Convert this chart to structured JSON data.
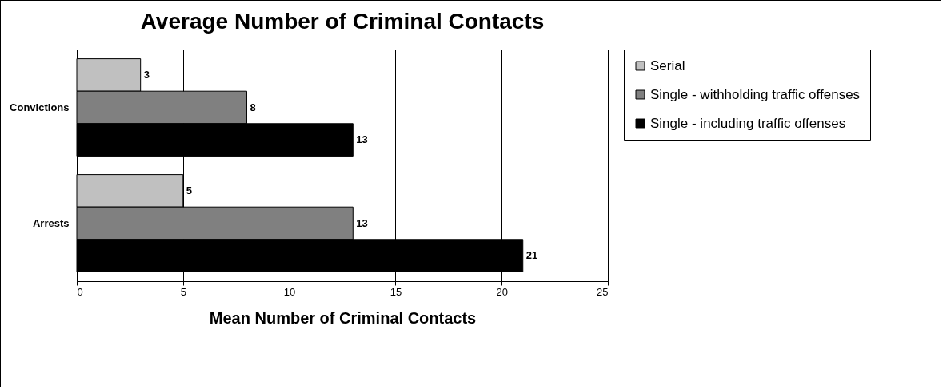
{
  "chart_data": {
    "type": "bar",
    "orientation": "horizontal",
    "title": "Average Number of Criminal Contacts",
    "xlabel": "Mean Number of Criminal Contacts",
    "categories": [
      "Convictions",
      "Arrests"
    ],
    "series": [
      {
        "name": "Serial",
        "color": "#c0c0c0",
        "values": [
          3,
          5
        ]
      },
      {
        "name": "Single - withholding traffic offenses",
        "color": "#808080",
        "values": [
          8,
          13
        ]
      },
      {
        "name": "Single - including traffic offenses",
        "color": "#000000",
        "values": [
          13,
          21
        ]
      }
    ],
    "xlim": [
      0,
      25
    ],
    "xticks": [
      0,
      5,
      10,
      15,
      20,
      25
    ],
    "grid": "x",
    "legend": "right",
    "data_labels": true
  }
}
